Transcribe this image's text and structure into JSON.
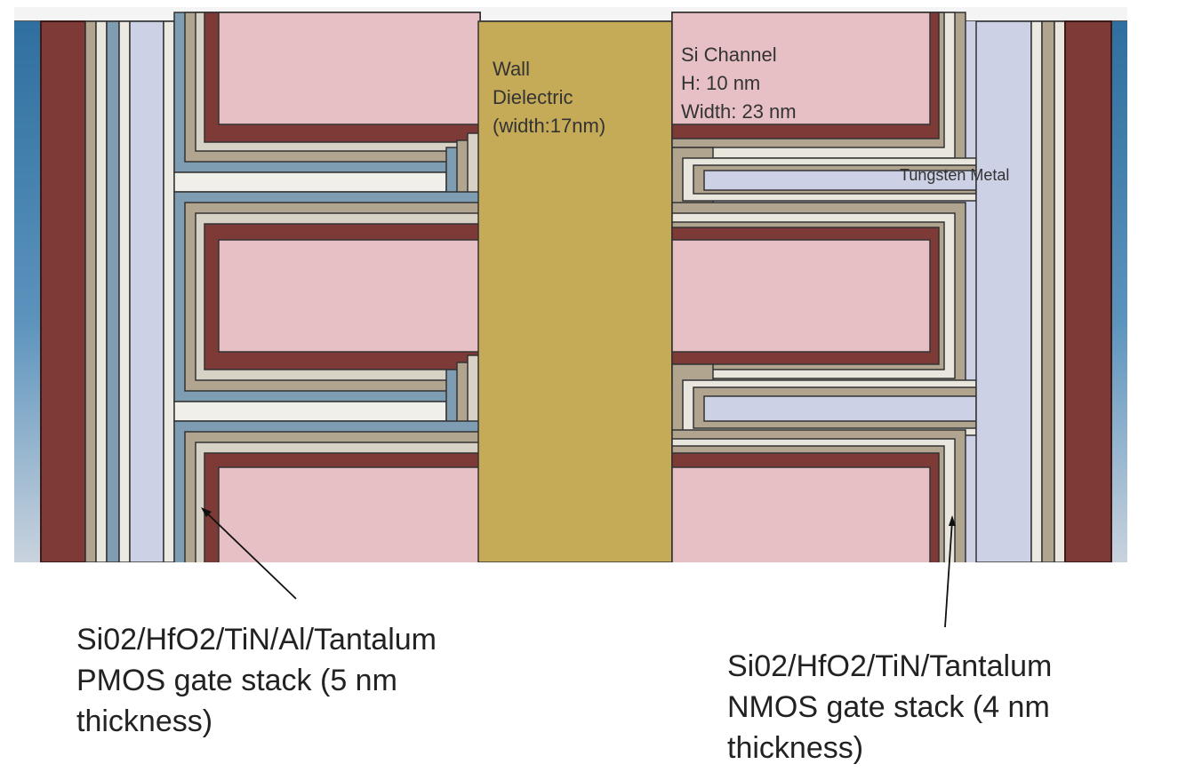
{
  "labels": {
    "wall_dielectric": [
      "Wall",
      "Dielectric",
      "(width:17nm)"
    ],
    "si_channel": [
      "Si Channel",
      "H: 10 nm",
      "Width: 23 nm"
    ],
    "tungsten": "Tungsten Metal",
    "pmos": [
      "Si02/HfO2/TiN/Al/Tantalum",
      "PMOS gate stack (5 nm",
      "thickness)"
    ],
    "nmos": [
      "Si02/HfO2/TiN/Tantalum",
      "NMOS gate stack (4 nm",
      "thickness)"
    ]
  },
  "colors": {
    "sky_top": "#2f6f9f",
    "sky_bottom": "#c9d3de",
    "outer_brown": "#7d3a36",
    "channel_pink": "#e6c0c4",
    "channel_edge": "#7a2f2e",
    "wall_gold": "#c5aa58",
    "tan_layer": "#b2a590",
    "lavender_fill": "#cdd1e6",
    "white_gap": "#ece9e2",
    "pmos_blue_layer": "#7f9db2"
  }
}
